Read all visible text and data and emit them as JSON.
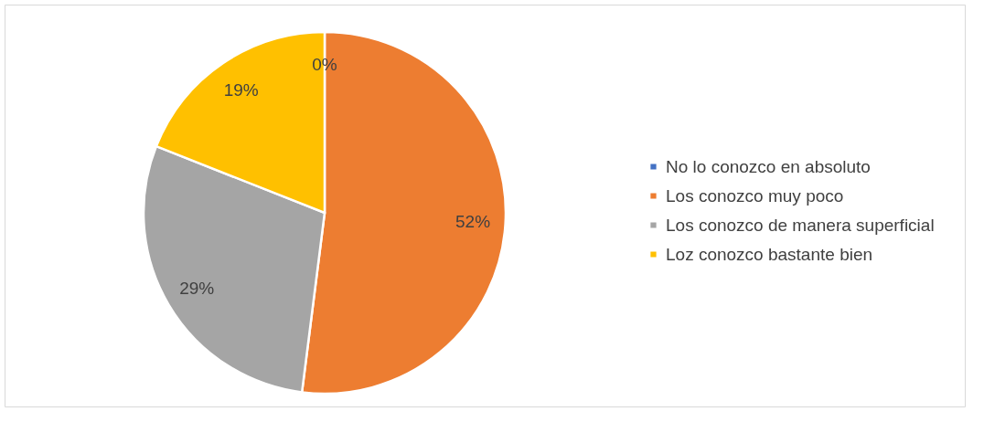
{
  "chart_data": {
    "type": "pie",
    "categories": [
      "No lo conozco en absoluto",
      "Los conozco muy poco",
      "Los conozco de manera superficial",
      "Loz conozco bastante bien"
    ],
    "values": [
      0,
      52,
      29,
      19
    ],
    "colors": [
      "#4472c4",
      "#ed7d31",
      "#a5a5a5",
      "#ffc000"
    ],
    "value_labels": [
      "0%",
      "52%",
      "29%",
      "19%"
    ],
    "legend": "right"
  }
}
